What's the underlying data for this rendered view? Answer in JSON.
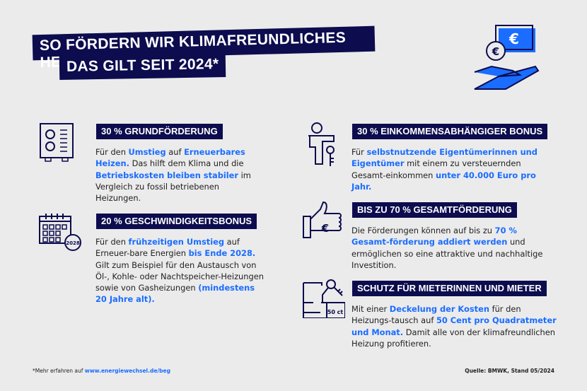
{
  "title": {
    "line1": "SO FÖRDERN WIR KLIMAFREUNDLICHES HEIZEN:",
    "line2": "DAS GILT SEIT 2024*"
  },
  "sections": [
    {
      "heading": "30 % GRUNDFÖRDERUNG",
      "text": [
        "Für den ",
        "Umstieg",
        " auf ",
        "Erneuerbares Heizen.",
        " Das hilft dem Klima und die ",
        "Betriebskosten bleiben stabiler",
        " im Vergleich zu fossil betriebenen Heizungen."
      ]
    },
    {
      "heading": "20 % GESCHWINDIGKEITSBONUS",
      "text": [
        "Für den ",
        "frühzeitigen Umstieg",
        " auf Erneuer-bare Energien ",
        "bis Ende 2028.",
        " Gilt zum Beispiel für den Austausch von Öl-, Kohle- oder Nachtspeicher-Heizungen sowie von Gasheizungen ",
        "(mindestens 20 Jahre alt)."
      ],
      "icon_label": "2028"
    },
    {
      "heading": "30 % EINKOMMENSABHÄNGIGER BONUS",
      "text": [
        "Für ",
        "selbstnutzende Eigentümerinnen und Eigentümer",
        " mit einem zu versteuernden Gesamt-einkommen ",
        "unter 40.000 Euro pro Jahr."
      ]
    },
    {
      "heading": "BIS ZU 70 % GESAMTFÖRDERUNG",
      "text": [
        "Die Förderungen können auf bis zu ",
        "70 % Gesamt-förderung addiert werden",
        " und ermöglichen so eine attraktive und nachhaltige Investition."
      ],
      "icon_label": "€"
    },
    {
      "heading": "SCHUTZ FÜR MIETERINNEN UND MIETER",
      "text": [
        "Mit einer ",
        "Deckelung der Kosten",
        " für den Heizungs-tausch auf ",
        "50 Cent pro Quadratmeter und Monat.",
        " Damit alle von der klimafreundlichen Heizung profitieren."
      ],
      "icon_label": "50 ct"
    }
  ],
  "footer": {
    "note_prefix": "*Mehr erfahren auf ",
    "note_link": "www.energiewechsel.de/beg",
    "source": "Quelle: BMWK, Stand 05/2024"
  },
  "hero_icon_label": "€",
  "colors": {
    "navy": "#0c0c4e",
    "accent": "#1a6dff",
    "background": "#ebebeb"
  }
}
